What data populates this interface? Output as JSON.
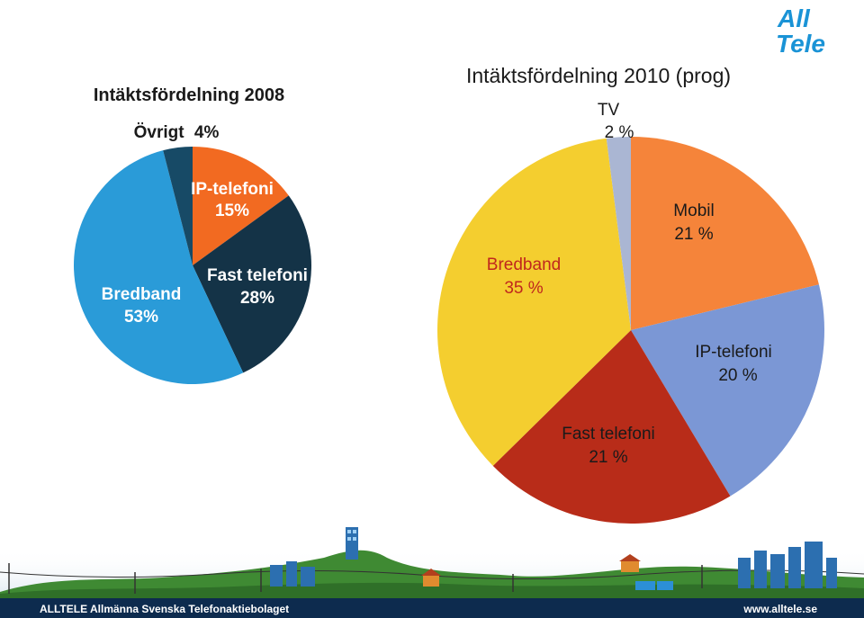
{
  "brand": {
    "logo_line1": "All",
    "logo_line2": "Tele",
    "logo_color": "#1a93d6"
  },
  "chart_data": [
    {
      "type": "pie",
      "title": "Intäktsfördelning 2008",
      "slices": [
        {
          "label": "IP-telefoni",
          "value": 15,
          "value_text": "15%",
          "color": "#f26a21"
        },
        {
          "label": "Fast telefoni",
          "value": 28,
          "value_text": "28%",
          "color": "#143347"
        },
        {
          "label": "Bredband",
          "value": 53,
          "value_text": "53%",
          "color": "#2a9bd8"
        },
        {
          "label": "Övrigt",
          "value": 4,
          "value_text": "4%",
          "color": "#174a66"
        }
      ]
    },
    {
      "type": "pie",
      "title": "Intäktsfördelning 2010 (prog)",
      "slices": [
        {
          "label": "Mobil",
          "value": 21,
          "value_text": "21 %",
          "color": "#f5843a"
        },
        {
          "label": "IP-telefoni",
          "value": 20,
          "value_text": "20 %",
          "color": "#7b97d5"
        },
        {
          "label": "Fast telefoni",
          "value": 21,
          "value_text": "21 %",
          "color": "#b82c19"
        },
        {
          "label": "Bredband",
          "value": 35,
          "value_text": "35 %",
          "color": "#f4ce2f"
        },
        {
          "label": "TV",
          "value": 2,
          "value_text": "2 %",
          "color": "#aab6d3"
        }
      ]
    }
  ],
  "footer": {
    "left_text": "ALLTELE Allmänna Svenska Telefonaktiebolaget",
    "right_text": "www.alltele.se"
  }
}
